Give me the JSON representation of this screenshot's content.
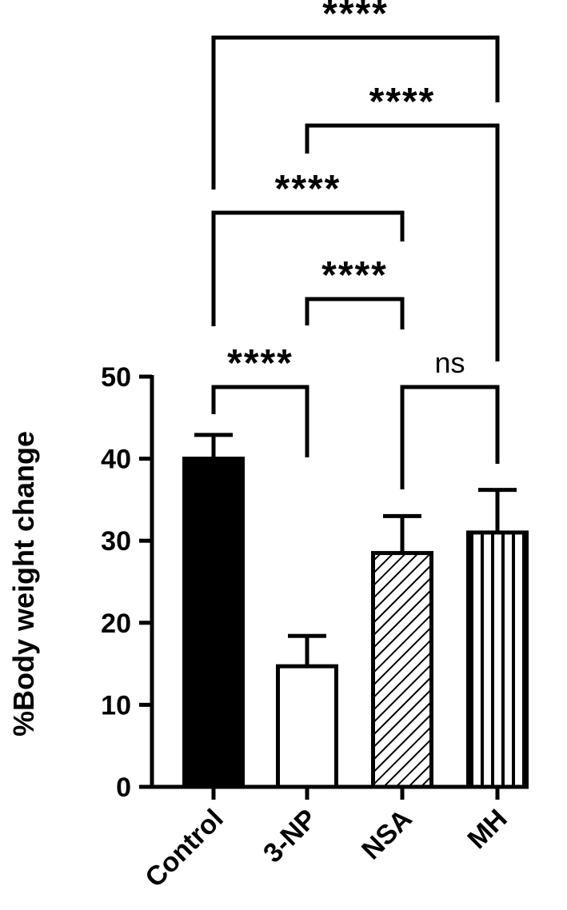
{
  "chart_data": {
    "type": "bar",
    "categories": [
      "Control",
      "3-NP",
      "NSA",
      "MH"
    ],
    "values": [
      40,
      14.7,
      28.5,
      31
    ],
    "errors": [
      2.9,
      3.7,
      4.5,
      5.2
    ],
    "patterns": [
      "solid",
      "empty",
      "diagonal",
      "vertical"
    ],
    "ylabel": "%Body weight change",
    "ylim": [
      0,
      50
    ],
    "yticks": [
      0,
      10,
      20,
      30,
      40,
      50
    ],
    "grid": false,
    "comparisons": [
      {
        "from": 0,
        "to": 1,
        "label": "****"
      },
      {
        "from": 2,
        "to": 3,
        "label": "ns"
      },
      {
        "from": 1,
        "to": 2,
        "label": "****"
      },
      {
        "from": 0,
        "to": 2,
        "label": "****"
      },
      {
        "from": 1,
        "to": 3,
        "label": "****"
      },
      {
        "from": 0,
        "to": 3,
        "label": "****"
      }
    ]
  },
  "colors": {
    "ink": "#000000",
    "background": "#ffffff"
  }
}
